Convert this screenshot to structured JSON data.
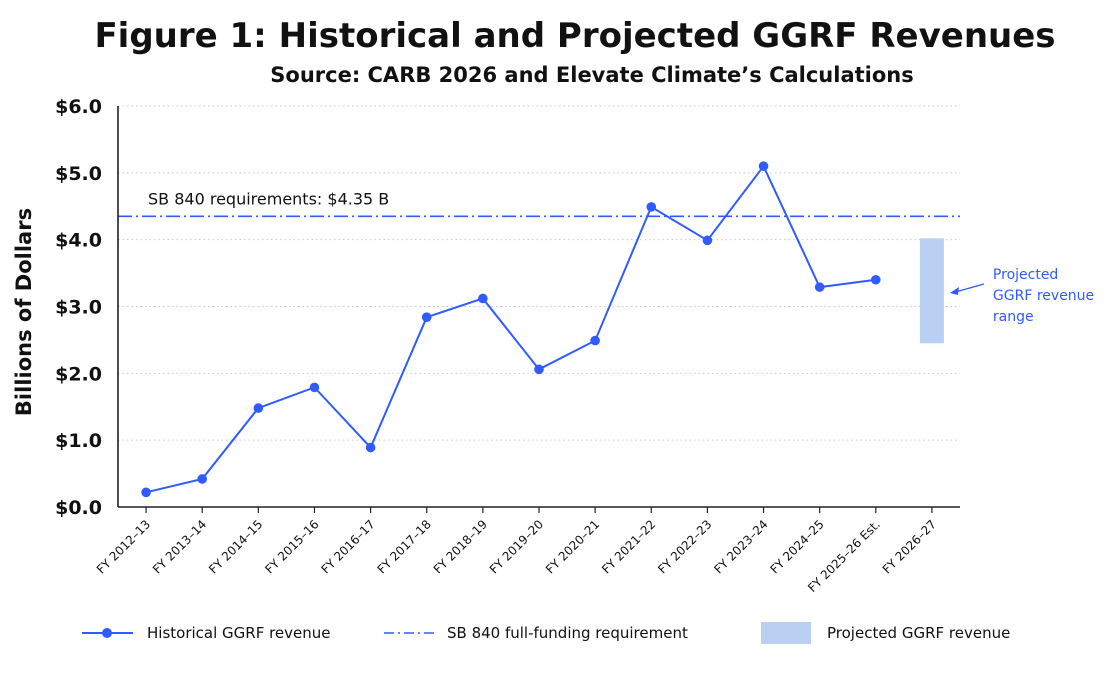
{
  "colors": {
    "line": "#2f5bff",
    "reference": "#2f5bff",
    "band": "#b9d0f2",
    "grid": "#c9c9c9",
    "text": "#111111"
  },
  "chart_data": {
    "type": "line",
    "title": "Figure 1: Historical and Projected GGRF Revenues",
    "subtitle": "Source: CARB 2026 and Elevate Climate’s Calculations",
    "ylabel": "Billions of Dollars",
    "xlabel": "",
    "ylim": [
      0,
      6
    ],
    "yticks": [
      {
        "value": 0,
        "label": "$0.0"
      },
      {
        "value": 1,
        "label": "$1.0"
      },
      {
        "value": 2,
        "label": "$2.0"
      },
      {
        "value": 3,
        "label": "$3.0"
      },
      {
        "value": 4,
        "label": "$4.0"
      },
      {
        "value": 5,
        "label": "$5.0"
      },
      {
        "value": 6,
        "label": "$6.0"
      }
    ],
    "grid": "horizontal dotted",
    "categories": [
      "FY 2012–13",
      "FY 2013–14",
      "FY 2014–15",
      "FY 2015–16",
      "FY 2016–17",
      "FY 2017–18",
      "FY 2018–19",
      "FY 2019–20",
      "FY 2020–21",
      "FY 2021–22",
      "FY 2022–23",
      "FY 2023–24",
      "FY 2024–25",
      "FY 2025–26 Est.",
      "FY 2026–27"
    ],
    "series": [
      {
        "name": "Historical GGRF revenue",
        "values": [
          0.22,
          0.42,
          1.48,
          1.79,
          0.89,
          2.84,
          3.12,
          2.06,
          2.49,
          4.49,
          3.99,
          5.1,
          3.29,
          3.4,
          null
        ]
      }
    ],
    "reference_line": {
      "name": "SB 840 full-funding requirement",
      "value": 4.35,
      "label": "SB 840 requirements: $4.35 B"
    },
    "projected_range": {
      "name": "Projected GGRF revenue",
      "category": "FY 2026–27",
      "low": 2.45,
      "high": 4.02,
      "annotation": [
        "Projected",
        "GGRF revenue",
        "range"
      ]
    },
    "legend": {
      "placement": "bottom",
      "items": [
        {
          "label": "Historical GGRF revenue",
          "kind": "line-marker"
        },
        {
          "label": "SB 840 full-funding requirement",
          "kind": "dash-dot"
        },
        {
          "label": "Projected GGRF revenue",
          "kind": "band"
        }
      ]
    }
  }
}
